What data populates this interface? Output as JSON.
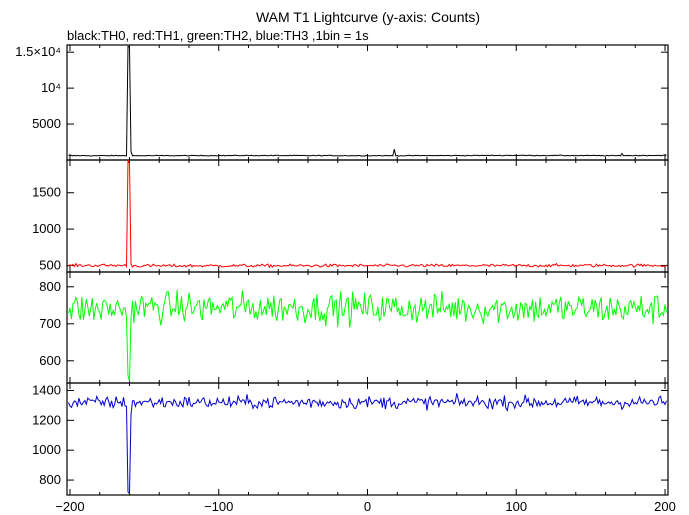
{
  "chart_data": {
    "type": "line",
    "title": "WAM T1 Lightcurve (y-axis: Counts)",
    "subtitle": "black:TH0, red:TH1, green:TH2, blue:TH3 ,1bin = 1s",
    "xlim": [
      -202,
      202
    ],
    "x_ticks": [
      -200,
      -100,
      0,
      100,
      200
    ],
    "x_tick_labels": [
      "−200",
      "−100",
      "0",
      "100",
      "200"
    ],
    "grid": false,
    "panels": [
      {
        "name": "TH0",
        "color": "#000000",
        "ylim": [
          0,
          16000
        ],
        "y_ticks": [
          5000,
          10000,
          15000
        ],
        "y_tick_labels": [
          "5000",
          "10⁴",
          "1.5×10⁴"
        ],
        "series": {
          "baseline": 600,
          "noise": 40,
          "x": [
            -200,
            -162,
            -161,
            -160,
            -159,
            -158,
            -157,
            -80,
            17,
            18,
            19,
            100,
            170,
            171,
            172,
            200
          ],
          "y": [
            600,
            600,
            15800,
            15700,
            1200,
            650,
            600,
            620,
            600,
            1500,
            600,
            640,
            600,
            900,
            620,
            640
          ]
        }
      },
      {
        "name": "TH1",
        "color": "#ff0000",
        "ylim": [
          410,
          1950
        ],
        "y_ticks": [
          500,
          1000,
          1500
        ],
        "y_tick_labels": [
          "500",
          "1000",
          "1500"
        ],
        "series": {
          "baseline": 500,
          "noise": 15,
          "x": [
            -200,
            -162,
            -161,
            -160,
            -159,
            -158,
            200
          ],
          "y": [
            500,
            500,
            1950,
            1900,
            520,
            495,
            500
          ]
        }
      },
      {
        "name": "TH2",
        "color": "#00ff00",
        "ylim": [
          540,
          840
        ],
        "y_ticks": [
          600,
          700,
          800
        ],
        "y_tick_labels": [
          "600",
          "700",
          "800"
        ],
        "series": {
          "baseline": 740,
          "noise": 30,
          "x": [
            -200,
            -162,
            -161,
            -160,
            -159,
            -158,
            200
          ],
          "y": [
            740,
            740,
            560,
            545,
            700,
            745,
            740
          ]
        }
      },
      {
        "name": "TH3",
        "color": "#0000cc",
        "ylim": [
          700,
          1450
        ],
        "y_ticks": [
          800,
          1000,
          1200,
          1400
        ],
        "y_tick_labels": [
          "800",
          "1000",
          "1200",
          "1400"
        ],
        "series": {
          "baseline": 1320,
          "noise": 30,
          "x": [
            -200,
            -162,
            -161,
            -160,
            -159,
            -158,
            200
          ],
          "y": [
            1320,
            1320,
            720,
            710,
            1250,
            1320,
            1320
          ]
        }
      }
    ]
  }
}
